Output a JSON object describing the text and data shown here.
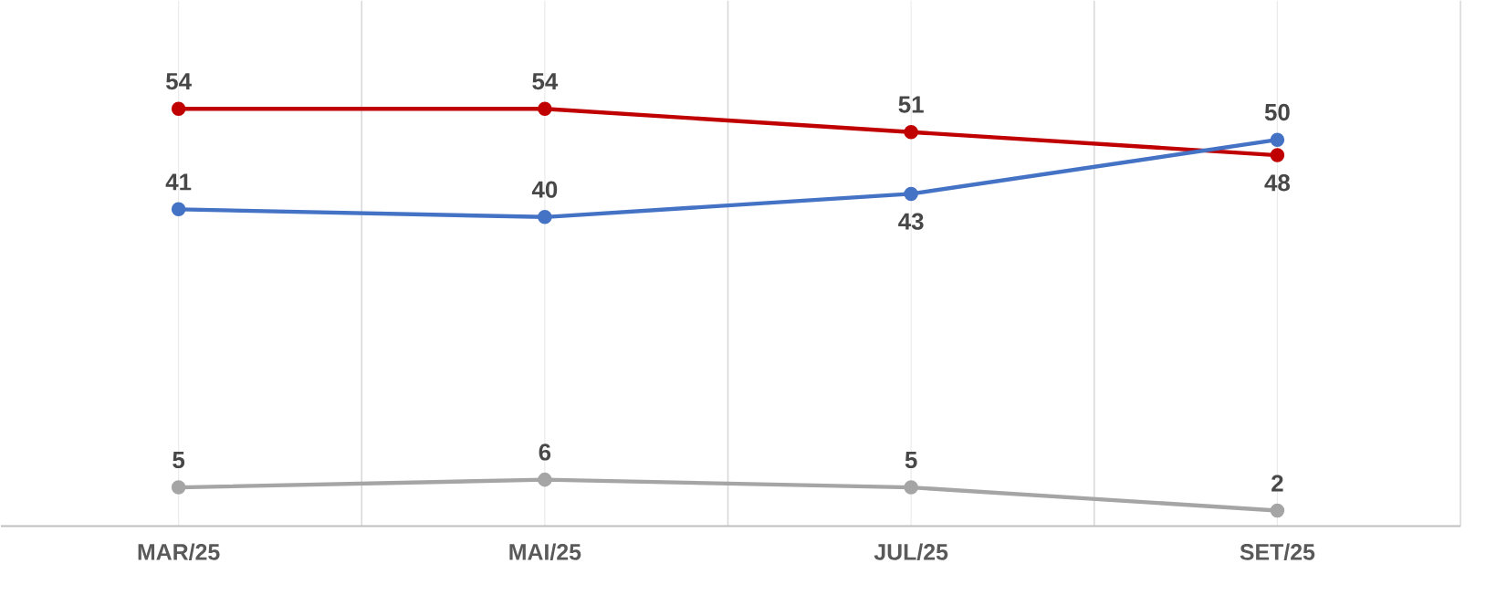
{
  "chart_data": {
    "type": "line",
    "categories": [
      "MAR/25",
      "MAI/25",
      "JUL/25",
      "SET/25"
    ],
    "series": [
      {
        "color": "#c00000",
        "values": [
          54,
          54,
          51,
          48
        ]
      },
      {
        "color": "#4472c4",
        "values": [
          41,
          40,
          43,
          50
        ]
      },
      {
        "color": "#a5a5a5",
        "values": [
          5,
          6,
          5,
          2
        ]
      }
    ],
    "ylim": [
      0,
      68
    ],
    "data_labels": true,
    "grid": "x",
    "marker": "circle",
    "line_style": "solid",
    "tick_labels": "x"
  }
}
